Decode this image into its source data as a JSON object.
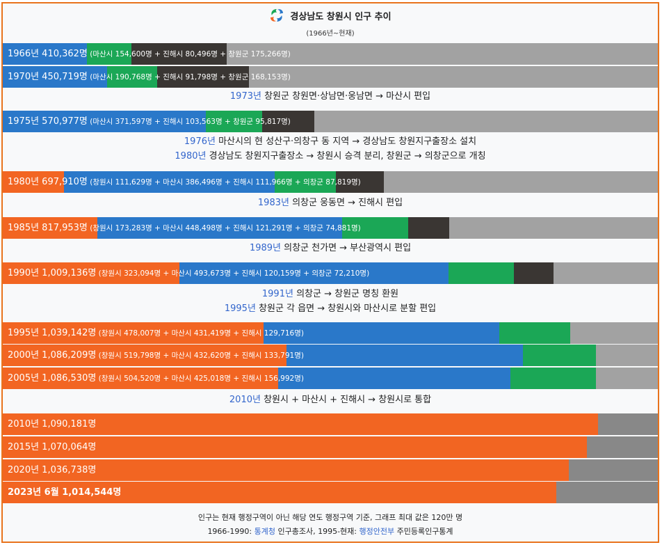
{
  "header": {
    "title": "경상남도 창원시 인구 추이",
    "subtitle": "(1966년~현재)"
  },
  "colors": {
    "changwon": "#f26522",
    "masan": "#2a78c9",
    "jinhae": "#1ba756",
    "uichang_or_changwongun": "#3a3633",
    "remaining": "#a2a2a2",
    "remaining_dark": "#888888",
    "link": "#3366cc",
    "border": "#e8731c"
  },
  "chart_data": {
    "type": "bar",
    "title": "경상남도 창원시 인구 추이",
    "subtitle": "(1966년~현재)",
    "stacked": true,
    "orientation": "horizontal",
    "xlim": [
      0,
      1200000
    ],
    "unit": "명",
    "years": [
      "1966",
      "1970",
      "1975",
      "1980",
      "1985",
      "1990",
      "1995",
      "2000",
      "2005",
      "2010",
      "2015",
      "2020",
      "2023년 6월"
    ],
    "series": [
      {
        "name": "창원시",
        "values": [
          null,
          null,
          null,
          111629,
          173283,
          323094,
          478007,
          519798,
          504520,
          1090181,
          1070064,
          1036738,
          1014544
        ]
      },
      {
        "name": "마산시",
        "values": [
          154600,
          190768,
          371597,
          386496,
          448498,
          493673,
          431419,
          432620,
          425018,
          null,
          null,
          null,
          null
        ]
      },
      {
        "name": "진해시",
        "values": [
          80496,
          91798,
          103563,
          111966,
          121291,
          120159,
          129716,
          133791,
          156992,
          null,
          null,
          null,
          null
        ]
      },
      {
        "name": "창원군",
        "values": [
          175266,
          168153,
          95817,
          null,
          null,
          null,
          null,
          null,
          null,
          null,
          null,
          null,
          null
        ]
      },
      {
        "name": "의창군",
        "values": [
          null,
          null,
          null,
          87819,
          74881,
          72210,
          null,
          null,
          null,
          null,
          null,
          null,
          null
        ]
      }
    ],
    "totals": [
      410362,
      450719,
      570977,
      697910,
      817953,
      1009136,
      1039142,
      1086209,
      1086530,
      1090181,
      1070064,
      1036738,
      1014544
    ]
  },
  "rows": [
    {
      "year": "1966",
      "main": "1966년 410,362명",
      "detail": " (마산시 154,600명 + 진해시 80,496명 + 창원군 175,266명)",
      "segments": [
        {
          "c": "masan",
          "v": 154600
        },
        {
          "c": "jinhae",
          "v": 80496
        },
        {
          "c": "uichang_or_changwongun",
          "v": 175266
        }
      ]
    },
    {
      "year": "1970",
      "main": "1970년 450,719명",
      "detail": " (마산시 190,768명 + 진해시 91,798명 + 창원군 168,153명)",
      "segments": [
        {
          "c": "masan",
          "v": 190768
        },
        {
          "c": "jinhae",
          "v": 91798
        },
        {
          "c": "uichang_or_changwongun",
          "v": 168153
        }
      ]
    },
    {
      "year": "1975",
      "main": "1975년 570,977명",
      "detail": " (마산시 371,597명 + 진해시 103,563명 + 창원군 95,817명)",
      "segments": [
        {
          "c": "masan",
          "v": 371597
        },
        {
          "c": "jinhae",
          "v": 103563
        },
        {
          "c": "uichang_or_changwongun",
          "v": 95817
        }
      ]
    },
    {
      "year": "1980",
      "main": "1980년 697,910명",
      "detail": " (창원시 111,629명 + 마산시 386,496명 + 진해시 111,966명 + 의창군 87,819명)",
      "segments": [
        {
          "c": "changwon",
          "v": 111629
        },
        {
          "c": "masan",
          "v": 386496
        },
        {
          "c": "jinhae",
          "v": 111966
        },
        {
          "c": "uichang_or_changwongun",
          "v": 87819
        }
      ]
    },
    {
      "year": "1985",
      "main": "1985년 817,953명",
      "detail": " (창원시 173,283명 + 마산시 448,498명 + 진해시 121,291명 + 의창군 74,881명)",
      "segments": [
        {
          "c": "changwon",
          "v": 173283
        },
        {
          "c": "masan",
          "v": 448498
        },
        {
          "c": "jinhae",
          "v": 121291
        },
        {
          "c": "uichang_or_changwongun",
          "v": 74881
        }
      ]
    },
    {
      "year": "1990",
      "main": "1990년 1,009,136명",
      "detail": " (창원시 323,094명 + 마산시 493,673명 + 진해시 120,159명 + 의창군 72,210명)",
      "segments": [
        {
          "c": "changwon",
          "v": 323094
        },
        {
          "c": "masan",
          "v": 493673
        },
        {
          "c": "jinhae",
          "v": 120159
        },
        {
          "c": "uichang_or_changwongun",
          "v": 72210
        }
      ]
    },
    {
      "year": "1995",
      "main": "1995년 1,039,142명",
      "detail": " (창원시 478,007명 + 마산시 431,419명 + 진해시 129,716명)",
      "segments": [
        {
          "c": "changwon",
          "v": 478007
        },
        {
          "c": "masan",
          "v": 431419
        },
        {
          "c": "jinhae",
          "v": 129716
        }
      ]
    },
    {
      "year": "2000",
      "main": "2000년 1,086,209명",
      "detail": " (창원시 519,798명 + 마산시 432,620명 + 진해시 133,791명)",
      "segments": [
        {
          "c": "changwon",
          "v": 519798
        },
        {
          "c": "masan",
          "v": 432620
        },
        {
          "c": "jinhae",
          "v": 133791
        }
      ]
    },
    {
      "year": "2005",
      "main": "2005년 1,086,530명",
      "detail": " (창원시 504,520명 + 마산시 425,018명 + 진해시 156,992명)",
      "segments": [
        {
          "c": "changwon",
          "v": 504520
        },
        {
          "c": "masan",
          "v": 425018
        },
        {
          "c": "jinhae",
          "v": 156992
        }
      ]
    },
    {
      "year": "2010",
      "main": "2010년 1,090,181명",
      "detail": "",
      "segments": [
        {
          "c": "changwon",
          "v": 1090181
        }
      ]
    },
    {
      "year": "2015",
      "main": "2015년 1,070,064명",
      "detail": "",
      "segments": [
        {
          "c": "changwon",
          "v": 1070064
        }
      ]
    },
    {
      "year": "2020",
      "main": "2020년 1,036,738명",
      "detail": "",
      "segments": [
        {
          "c": "changwon",
          "v": 1036738
        }
      ]
    },
    {
      "year": "2023",
      "main": "2023년 6월 1,014,544명",
      "detail": "",
      "segments": [
        {
          "c": "changwon",
          "v": 1014544
        }
      ]
    }
  ],
  "events": [
    {
      "lines": [
        {
          "yr": "1973년",
          "text": " 창원군 창원면·상남면·웅남면 → 마산시 편입"
        }
      ]
    },
    {
      "lines": [
        {
          "yr": "1976년",
          "text": " 마산시의 현 성산구·의창구 동 지역 → 경상남도 창원지구출장소 설치"
        },
        {
          "yr": "1980년",
          "text": " 경상남도 창원지구출장소 → 창원시 승격 분리, 창원군 → 의창군으로 개칭"
        }
      ]
    },
    {
      "lines": [
        {
          "yr": "1983년",
          "text": " 의창군 웅동면 → 진해시 편입"
        }
      ]
    },
    {
      "lines": [
        {
          "yr": "1989년",
          "text": " 의창군 천가면 → 부산광역시 편입"
        }
      ]
    },
    {
      "lines": [
        {
          "yr": "1991년",
          "text": " 의창군 → 창원군 명칭 환원"
        },
        {
          "yr": "1995년",
          "text": " 창원군 각 읍면 → 창원시와 마산시로 분할 편입"
        }
      ]
    },
    {
      "lines": [
        {
          "yr": "2010년",
          "text": " 창원시 + 마산시 + 진해시 → 창원시로 통합"
        }
      ]
    }
  ],
  "footer": {
    "note": "인구는 현재 행정구역이 아닌 해당 연도 행정구역 기준, 그래프 최대 값은 120만 명",
    "source_prefix": "1966-1990: ",
    "source_link1": "통계청",
    "source_mid": " 인구총조사, 1995-현재: ",
    "source_link2": "행정안전부",
    "source_suffix": " 주민등록인구통계"
  }
}
